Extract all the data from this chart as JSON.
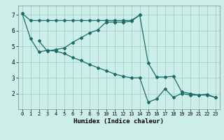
{
  "xlabel": "Humidex (Indice chaleur)",
  "bg_color": "#cceee8",
  "grid_color": "#aad4ce",
  "line_color": "#1a6b6b",
  "xlim": [
    -0.5,
    23.5
  ],
  "ylim": [
    1.0,
    7.6
  ],
  "line1_x": [
    0,
    1,
    2,
    3,
    4,
    5,
    6,
    7,
    8,
    9,
    10,
    11,
    12,
    13,
    14
  ],
  "line1_y": [
    7.1,
    6.65,
    6.65,
    6.65,
    6.65,
    6.65,
    6.65,
    6.65,
    6.65,
    6.65,
    6.65,
    6.65,
    6.65,
    6.65,
    7.0
  ],
  "line2_x": [
    2,
    3,
    4,
    5,
    6,
    7,
    8,
    9,
    10,
    11,
    12,
    13,
    14,
    15,
    16,
    17,
    18,
    19,
    20,
    21,
    22,
    23
  ],
  "line2_y": [
    5.35,
    4.7,
    4.8,
    4.9,
    5.25,
    5.55,
    5.85,
    6.05,
    6.55,
    6.55,
    6.55,
    6.6,
    7.0,
    3.95,
    3.05,
    3.05,
    3.1,
    2.1,
    2.0,
    1.9,
    1.95,
    1.75
  ],
  "line3_x": [
    0,
    1,
    2,
    3,
    4,
    5,
    6,
    7,
    8,
    9,
    10,
    11,
    12,
    13,
    14,
    15,
    16,
    17,
    18,
    19,
    20,
    21,
    22,
    23
  ],
  "line3_y": [
    7.1,
    5.5,
    4.65,
    4.75,
    4.7,
    4.55,
    4.3,
    4.1,
    3.85,
    3.65,
    3.45,
    3.25,
    3.1,
    3.0,
    3.0,
    1.45,
    1.65,
    2.3,
    1.75,
    2.0,
    1.9,
    1.9,
    1.9,
    1.75
  ],
  "yticks": [
    2,
    3,
    4,
    5,
    6,
    7
  ],
  "xticks": [
    0,
    1,
    2,
    3,
    4,
    5,
    6,
    7,
    8,
    9,
    10,
    11,
    12,
    13,
    14,
    15,
    16,
    17,
    18,
    19,
    20,
    21,
    22,
    23
  ],
  "xlabel_fontsize": 6.5,
  "tick_fontsize": 5.0,
  "ytick_fontsize": 5.5
}
